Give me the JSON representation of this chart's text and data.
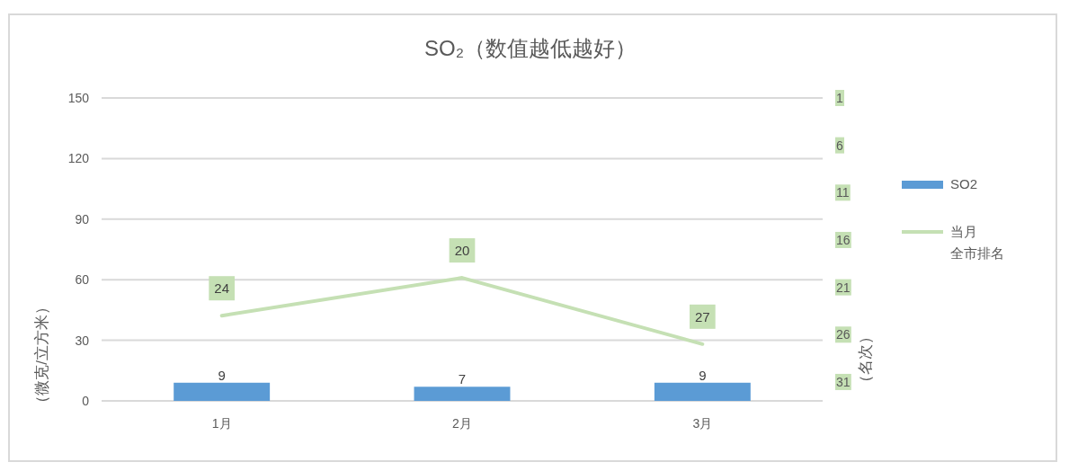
{
  "chart_data": {
    "type": "bar",
    "title": "SO₂（数值越低越好）",
    "ylabel": "（微克/立方米）",
    "y2label": "（名次）",
    "categories": [
      "1月",
      "2月",
      "3月"
    ],
    "series": [
      {
        "name": "SO2",
        "color": "#5b9bd5",
        "values": [
          9,
          7,
          9
        ]
      },
      {
        "name": "当月全市排名",
        "type": "line",
        "axis": "y2",
        "color": "#c5e0b4",
        "values": [
          24,
          20,
          27
        ]
      }
    ],
    "ylim": [
      0,
      150
    ],
    "yticks": [
      0,
      30,
      60,
      90,
      120,
      150
    ],
    "y2lim": [
      33,
      1
    ],
    "y2ticks": [
      1,
      6,
      11,
      16,
      21,
      26,
      31
    ],
    "grid": "y",
    "legend": "right",
    "data_labels": true
  }
}
